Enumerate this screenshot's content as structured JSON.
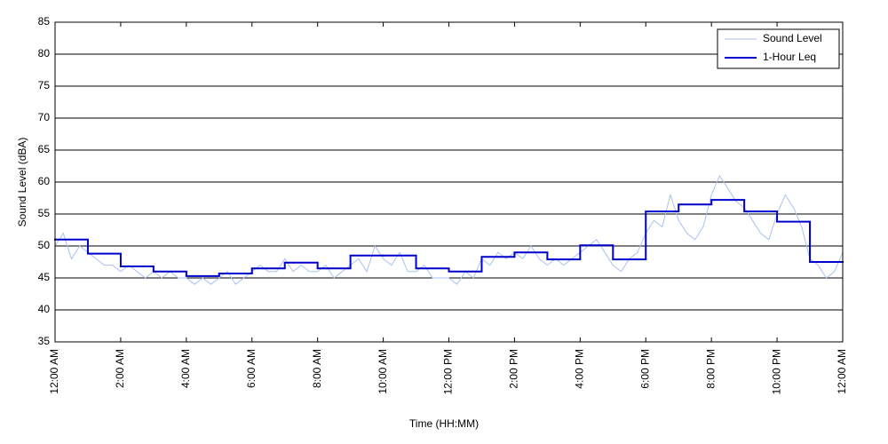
{
  "chart_data": {
    "type": "line",
    "xlabel": "Time (HH:MM)",
    "ylabel": "Sound Level (dBA)",
    "xlim": [
      0,
      24
    ],
    "ylim": [
      35,
      85
    ],
    "yticks": [
      35,
      40,
      45,
      50,
      55,
      60,
      65,
      70,
      75,
      80,
      85
    ],
    "xticks": [
      {
        "value": 0,
        "label": "12:00 AM"
      },
      {
        "value": 2,
        "label": "2:00 AM"
      },
      {
        "value": 4,
        "label": "4:00 AM"
      },
      {
        "value": 6,
        "label": "6:00 AM"
      },
      {
        "value": 8,
        "label": "8:00 AM"
      },
      {
        "value": 10,
        "label": "10:00 AM"
      },
      {
        "value": 12,
        "label": "12:00 PM"
      },
      {
        "value": 14,
        "label": "2:00 PM"
      },
      {
        "value": 16,
        "label": "4:00 PM"
      },
      {
        "value": 18,
        "label": "6:00 PM"
      },
      {
        "value": 20,
        "label": "8:00 PM"
      },
      {
        "value": 22,
        "label": "10:00 PM"
      },
      {
        "value": 24,
        "label": "12:00 AM"
      }
    ],
    "grid": true,
    "legend": "upper right",
    "series": [
      {
        "name": "Sound Level",
        "color": "#a9c2f0",
        "step": false,
        "x": [
          0,
          0.25,
          0.5,
          0.75,
          1,
          1.25,
          1.5,
          1.75,
          2,
          2.25,
          2.5,
          2.75,
          3,
          3.25,
          3.5,
          3.75,
          4,
          4.25,
          4.5,
          4.75,
          5,
          5.25,
          5.5,
          5.75,
          6,
          6.25,
          6.5,
          6.75,
          7,
          7.25,
          7.5,
          7.75,
          8,
          8.25,
          8.5,
          8.75,
          9,
          9.25,
          9.5,
          9.75,
          10,
          10.25,
          10.5,
          10.75,
          11,
          11.25,
          11.5,
          11.75,
          12,
          12.25,
          12.5,
          12.75,
          13,
          13.25,
          13.5,
          13.75,
          14,
          14.25,
          14.5,
          14.75,
          15,
          15.25,
          15.5,
          15.75,
          16,
          16.25,
          16.5,
          16.75,
          17,
          17.25,
          17.5,
          17.75,
          18,
          18.25,
          18.5,
          18.75,
          19,
          19.25,
          19.5,
          19.75,
          20,
          20.25,
          20.5,
          20.75,
          21,
          21.25,
          21.5,
          21.75,
          22,
          22.25,
          22.5,
          22.75,
          23,
          23.25,
          23.5,
          23.75,
          24
        ],
        "values": [
          50,
          52,
          48,
          50,
          49,
          48,
          47,
          47,
          46,
          47,
          46,
          45,
          46,
          45,
          46,
          45,
          45,
          44,
          45,
          44,
          45,
          46,
          44,
          45,
          46,
          47,
          46,
          46,
          48,
          46,
          47,
          46,
          46,
          47,
          45,
          46,
          47,
          48,
          46,
          50,
          48,
          47,
          49,
          46,
          46,
          47,
          45,
          45,
          45,
          44,
          46,
          45,
          48,
          47,
          49,
          48,
          49,
          48,
          50,
          48,
          47,
          48,
          47,
          48,
          49,
          50,
          51,
          49,
          47,
          46,
          48,
          49,
          52,
          54,
          53,
          58,
          54,
          52,
          51,
          53,
          58,
          61,
          59,
          57,
          56,
          54,
          52,
          51,
          55,
          58,
          56,
          53,
          48,
          47,
          45,
          46,
          49
        ]
      },
      {
        "name": "1-Hour Leq",
        "color": "#0000cc",
        "step": true,
        "x": [
          0,
          1,
          2,
          3,
          4,
          5,
          6,
          7,
          8,
          9,
          10,
          11,
          12,
          13,
          14,
          15,
          16,
          17,
          18,
          19,
          20,
          21,
          22,
          23
        ],
        "values": [
          51.0,
          48.8,
          46.8,
          46.0,
          45.3,
          45.7,
          46.5,
          47.4,
          46.5,
          48.5,
          48.5,
          46.5,
          46.0,
          48.3,
          49.0,
          47.9,
          50.1,
          47.9,
          55.4,
          56.5,
          57.2,
          55.4,
          53.8,
          47.5
        ]
      }
    ]
  }
}
